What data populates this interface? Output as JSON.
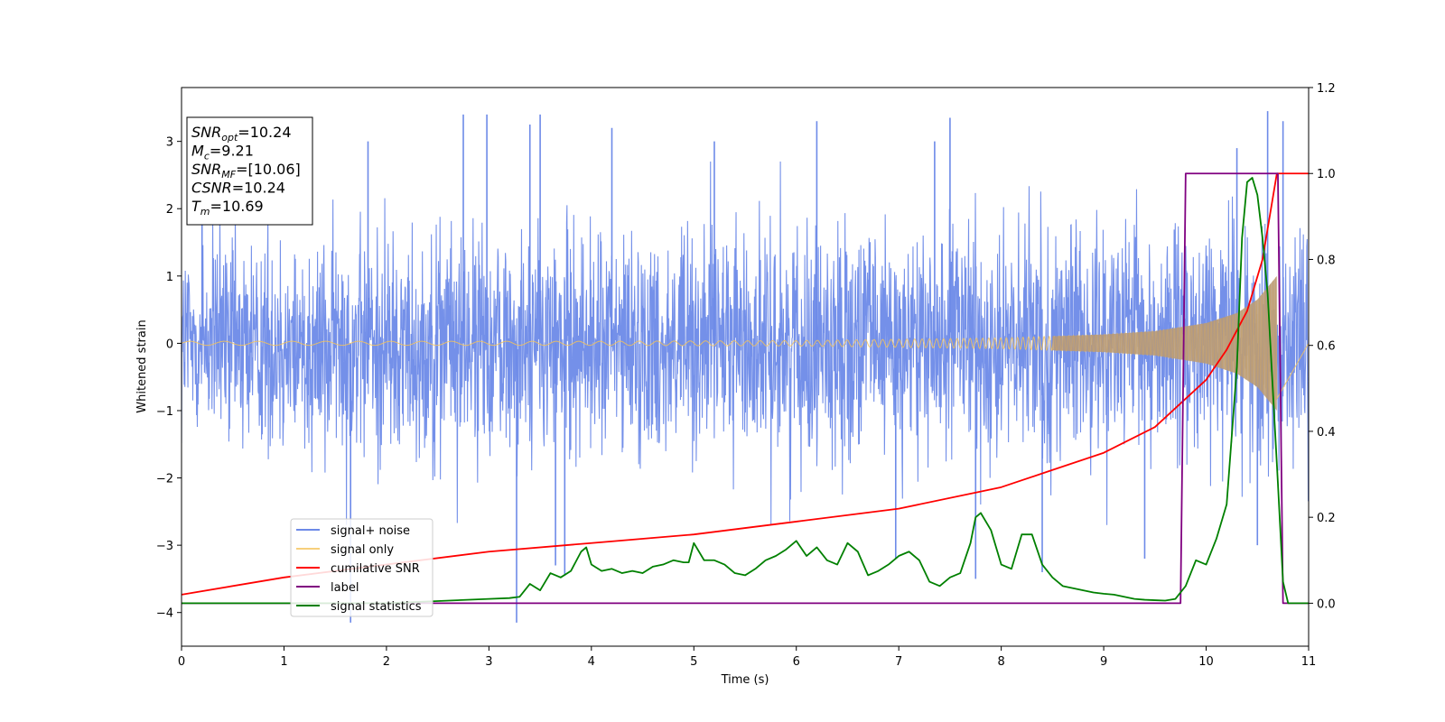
{
  "chart_data": {
    "type": "line",
    "xlabel": "Time (s)",
    "ylabel": "Whitened strain",
    "xlim": [
      0,
      11
    ],
    "ylim_left": [
      -4.5,
      3.8
    ],
    "ylim_right": [
      -0.1,
      1.2
    ],
    "x_ticks": [
      0,
      1,
      2,
      3,
      4,
      5,
      6,
      7,
      8,
      9,
      10,
      11
    ],
    "y_ticks_left": [
      -4,
      -3,
      -2,
      -1,
      0,
      1,
      2,
      3
    ],
    "y_ticks_right": [
      0.0,
      0.2,
      0.4,
      0.6,
      0.8,
      1.0,
      1.2
    ],
    "y_tick_labels_left": [
      "−4",
      "−3",
      "−2",
      "−1",
      "0",
      "1",
      "2",
      "3"
    ],
    "y_tick_labels_right": [
      "0.0",
      "0.2",
      "0.4",
      "0.6",
      "0.8",
      "1.0",
      "1.2"
    ],
    "grid": false,
    "legend_placement": "lower-left",
    "info_box": [
      {
        "main": "SNR",
        "sub": "opt",
        "rest": "=10.24"
      },
      {
        "main": "M",
        "sub": "c",
        "rest": "=9.21"
      },
      {
        "main": "SNR",
        "sub": "MF",
        "rest": "=[10.06]"
      },
      {
        "main": "CSNR",
        "sub": "",
        "rest": "=10.24"
      },
      {
        "main": "T",
        "sub": "m",
        "rest": "=10.69"
      }
    ],
    "series": [
      {
        "name": "signal+ noise",
        "axis": "left",
        "color": "#6d8ae8",
        "style": "noise",
        "envelope": {
          "x": [
            0,
            11
          ],
          "typical_amplitude": 1.4,
          "peak_amplitude": 3.4
        },
        "spikes": [
          {
            "x": 0.2,
            "y": 2.45
          },
          {
            "x": 1.65,
            "y": -4.15
          },
          {
            "x": 1.82,
            "y": 3.0
          },
          {
            "x": 2.75,
            "y": 3.4
          },
          {
            "x": 2.98,
            "y": 3.4
          },
          {
            "x": 3.27,
            "y": -4.15
          },
          {
            "x": 3.4,
            "y": 3.25
          },
          {
            "x": 3.5,
            "y": 3.4
          },
          {
            "x": 3.65,
            "y": -3.3
          },
          {
            "x": 3.74,
            "y": -3.45
          },
          {
            "x": 4.2,
            "y": 3.2
          },
          {
            "x": 5.2,
            "y": 3.0
          },
          {
            "x": 6.2,
            "y": 3.3
          },
          {
            "x": 6.97,
            "y": -3.2
          },
          {
            "x": 7.35,
            "y": 3.0
          },
          {
            "x": 7.5,
            "y": 3.35
          },
          {
            "x": 7.75,
            "y": -3.5
          },
          {
            "x": 8.4,
            "y": -3.4
          },
          {
            "x": 9.4,
            "y": -3.2
          },
          {
            "x": 10.3,
            "y": 2.9
          },
          {
            "x": 10.5,
            "y": -3.0
          },
          {
            "x": 10.6,
            "y": 3.45
          },
          {
            "x": 10.75,
            "y": 3.3
          }
        ]
      },
      {
        "name": "signal only",
        "axis": "left",
        "color": "#f5c35a",
        "style": "chirp",
        "envelope": {
          "x": [
            0,
            4,
            6,
            8,
            9,
            9.5,
            10,
            10.3,
            10.5,
            10.69
          ],
          "amplitude": [
            0.03,
            0.03,
            0.04,
            0.08,
            0.13,
            0.18,
            0.3,
            0.45,
            0.65,
            1.0
          ]
        }
      },
      {
        "name": "cumilative SNR",
        "axis": "right",
        "color": "#ff0000",
        "style": "line",
        "x": [
          0,
          1,
          2,
          3,
          4,
          5,
          6,
          7,
          8,
          8.5,
          9,
          9.5,
          10,
          10.2,
          10.4,
          10.55,
          10.69,
          11
        ],
        "y": [
          0.02,
          0.06,
          0.09,
          0.12,
          0.14,
          0.16,
          0.19,
          0.22,
          0.27,
          0.31,
          0.35,
          0.41,
          0.52,
          0.59,
          0.68,
          0.8,
          1.0,
          1.0
        ]
      },
      {
        "name": "label",
        "axis": "right",
        "color": "#800080",
        "style": "line",
        "x": [
          0,
          9.75,
          9.8,
          10.7,
          10.75,
          11
        ],
        "y": [
          0,
          0,
          1,
          1,
          0,
          0
        ]
      },
      {
        "name": "signal statistics",
        "axis": "right",
        "color": "#008000",
        "style": "line",
        "x": [
          0,
          0.5,
          1,
          1.5,
          2,
          2.5,
          3,
          3.2,
          3.3,
          3.4,
          3.5,
          3.6,
          3.7,
          3.8,
          3.9,
          3.95,
          4.0,
          4.1,
          4.2,
          4.3,
          4.4,
          4.5,
          4.6,
          4.7,
          4.8,
          4.9,
          4.95,
          5.0,
          5.1,
          5.2,
          5.3,
          5.4,
          5.5,
          5.6,
          5.7,
          5.8,
          5.9,
          6.0,
          6.1,
          6.2,
          6.3,
          6.4,
          6.5,
          6.6,
          6.7,
          6.8,
          6.9,
          7.0,
          7.1,
          7.2,
          7.3,
          7.4,
          7.5,
          7.6,
          7.7,
          7.75,
          7.8,
          7.9,
          8.0,
          8.1,
          8.2,
          8.3,
          8.4,
          8.5,
          8.6,
          8.7,
          8.8,
          8.9,
          9.0,
          9.1,
          9.2,
          9.3,
          9.4,
          9.5,
          9.6,
          9.7,
          9.8,
          9.9,
          10.0,
          10.1,
          10.2,
          10.3,
          10.35,
          10.4,
          10.45,
          10.5,
          10.55,
          10.6,
          10.65,
          10.7,
          10.75,
          10.8,
          10.9,
          11
        ],
        "y": [
          0,
          0,
          0,
          0,
          0,
          0.005,
          0.01,
          0.012,
          0.015,
          0.045,
          0.03,
          0.07,
          0.06,
          0.075,
          0.12,
          0.13,
          0.09,
          0.075,
          0.08,
          0.07,
          0.075,
          0.07,
          0.085,
          0.09,
          0.1,
          0.095,
          0.095,
          0.14,
          0.1,
          0.1,
          0.09,
          0.07,
          0.065,
          0.08,
          0.1,
          0.11,
          0.125,
          0.145,
          0.11,
          0.13,
          0.1,
          0.09,
          0.14,
          0.12,
          0.065,
          0.075,
          0.09,
          0.11,
          0.12,
          0.1,
          0.05,
          0.04,
          0.06,
          0.07,
          0.14,
          0.2,
          0.21,
          0.17,
          0.09,
          0.08,
          0.16,
          0.16,
          0.09,
          0.06,
          0.04,
          0.035,
          0.03,
          0.025,
          0.022,
          0.02,
          0.015,
          0.01,
          0.008,
          0.007,
          0.006,
          0.01,
          0.04,
          0.1,
          0.09,
          0.15,
          0.23,
          0.55,
          0.85,
          0.98,
          0.99,
          0.95,
          0.85,
          0.72,
          0.5,
          0.28,
          0.05,
          0.0,
          0.0,
          0.0
        ]
      }
    ]
  }
}
